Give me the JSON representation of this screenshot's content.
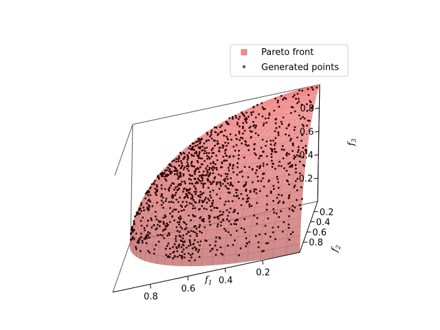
{
  "chart_data": {
    "type": "scatter",
    "subtype": "3d-surface-with-points",
    "title": "",
    "xlabel": "f1",
    "ylabel": "f2",
    "zlabel": "f3",
    "x_ticks": [
      "0.8",
      "0.6",
      "0.4",
      "0.2"
    ],
    "y_ticks": [
      "0.2",
      "0.4",
      "0.6",
      "0.8"
    ],
    "z_ticks": [
      "0.2",
      "0.4",
      "0.6",
      "0.8"
    ],
    "xlim": [
      0,
      1
    ],
    "ylim": [
      0,
      1
    ],
    "zlim": [
      0,
      1
    ],
    "grid": false,
    "legend_position": "top-right",
    "series": [
      {
        "name": "Pareto front",
        "kind": "surface",
        "marker": "square",
        "color": "#f08080",
        "description": "Spherical Pareto front f1^2 + f2^2 + f3^2 = 1 in the positive octant"
      },
      {
        "name": "Generated points",
        "kind": "scatter",
        "marker": "circle",
        "color": "#3a0000",
        "count": 1200
      }
    ],
    "surface_color": "#f08080",
    "surface_edge_color": "#c06060",
    "points_color": "#2a0000",
    "axis_color": "#000000",
    "pane_edge_color": "#555555"
  }
}
